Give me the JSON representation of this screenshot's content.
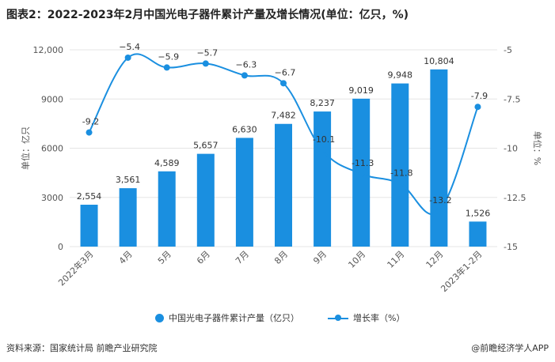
{
  "title": "图表2：2022-2023年2月中国光电子器件累计产量及增长情况(单位：亿只，%)",
  "footer": {
    "source": "资料来源：国家统计局 前瞻产业研究院",
    "brand": "@前瞻经济学人APP"
  },
  "colors": {
    "bar": "#1a8fe0",
    "line": "#1a8fe0",
    "grid": "#e5e5e5"
  },
  "chart_data": {
    "type": "bar+line",
    "categories": [
      "2022年3月",
      "4月",
      "5月",
      "6月",
      "7月",
      "8月",
      "9月",
      "10月",
      "11月",
      "12月",
      "2023年1-2月"
    ],
    "series": [
      {
        "name": "中国光电子器件累计产量（亿只）",
        "type": "bar",
        "axis": "left",
        "values": [
          2554,
          3561,
          4589,
          5657,
          6630,
          7482,
          8237,
          9019,
          9948,
          10804,
          1526
        ],
        "labels": [
          "2,554",
          "3,561",
          "4,589",
          "5,657",
          "6,630",
          "7,482",
          "8,237",
          "9,019",
          "9,948",
          "10,804",
          "1,526"
        ]
      },
      {
        "name": "增长率（%）",
        "type": "line",
        "axis": "right",
        "values": [
          -9.2,
          -5.4,
          -5.9,
          -5.7,
          -6.3,
          -6.7,
          -10.1,
          -11.3,
          -11.8,
          -13.2,
          -7.9
        ],
        "labels": [
          "-9.2",
          "−5.4",
          "−5.9",
          "−5.7",
          "−6.3",
          "−6.7",
          "-10.1",
          "-11.3",
          "-11.8",
          "-13.2",
          "-7.9"
        ]
      }
    ],
    "left_axis": {
      "label": "单位：亿只",
      "ylim": [
        0,
        12000
      ],
      "ticks": [
        0,
        3000,
        6000,
        9000,
        12000
      ],
      "tick_labels": [
        "0",
        "3000",
        "6000",
        "9000",
        "12,000"
      ]
    },
    "right_axis": {
      "label": "单位：%",
      "ylim": [
        -15,
        -5
      ],
      "ticks": [
        -15,
        -12.5,
        -10,
        -7.5,
        -5
      ],
      "tick_labels": [
        "-15",
        "-12.5",
        "-10",
        "-7.5",
        "-5"
      ]
    },
    "grid": true,
    "legend_position": "bottom"
  }
}
